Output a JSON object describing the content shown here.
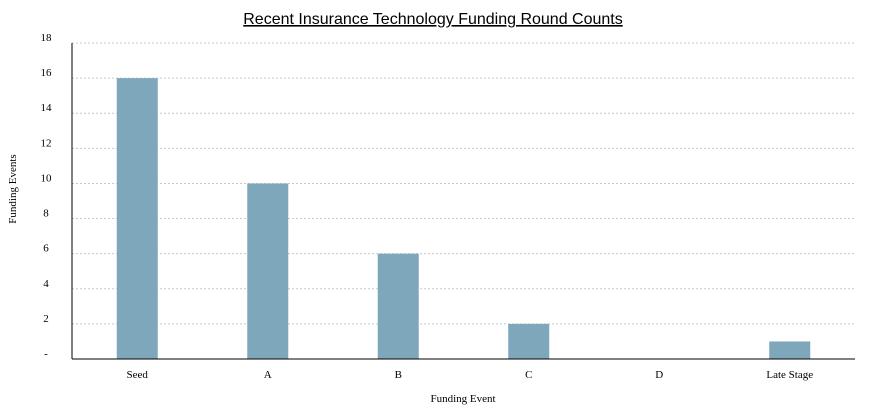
{
  "chart_data": {
    "type": "bar",
    "title": "Recent Insurance Technology Funding Round Counts",
    "xlabel": "Funding Event",
    "ylabel": "Funding Events",
    "categories": [
      "Seed",
      "A",
      "B",
      "C",
      "D",
      "Late Stage"
    ],
    "values": [
      16,
      10,
      6,
      2,
      0,
      1
    ],
    "ylim": [
      0,
      18
    ],
    "yticks": [
      "-",
      "2",
      "4",
      "6",
      "8",
      "10",
      "12",
      "14",
      "16",
      "18"
    ],
    "grid": true,
    "bar_color": "#7fa7bb",
    "grid_color": "#c8c8c8"
  }
}
